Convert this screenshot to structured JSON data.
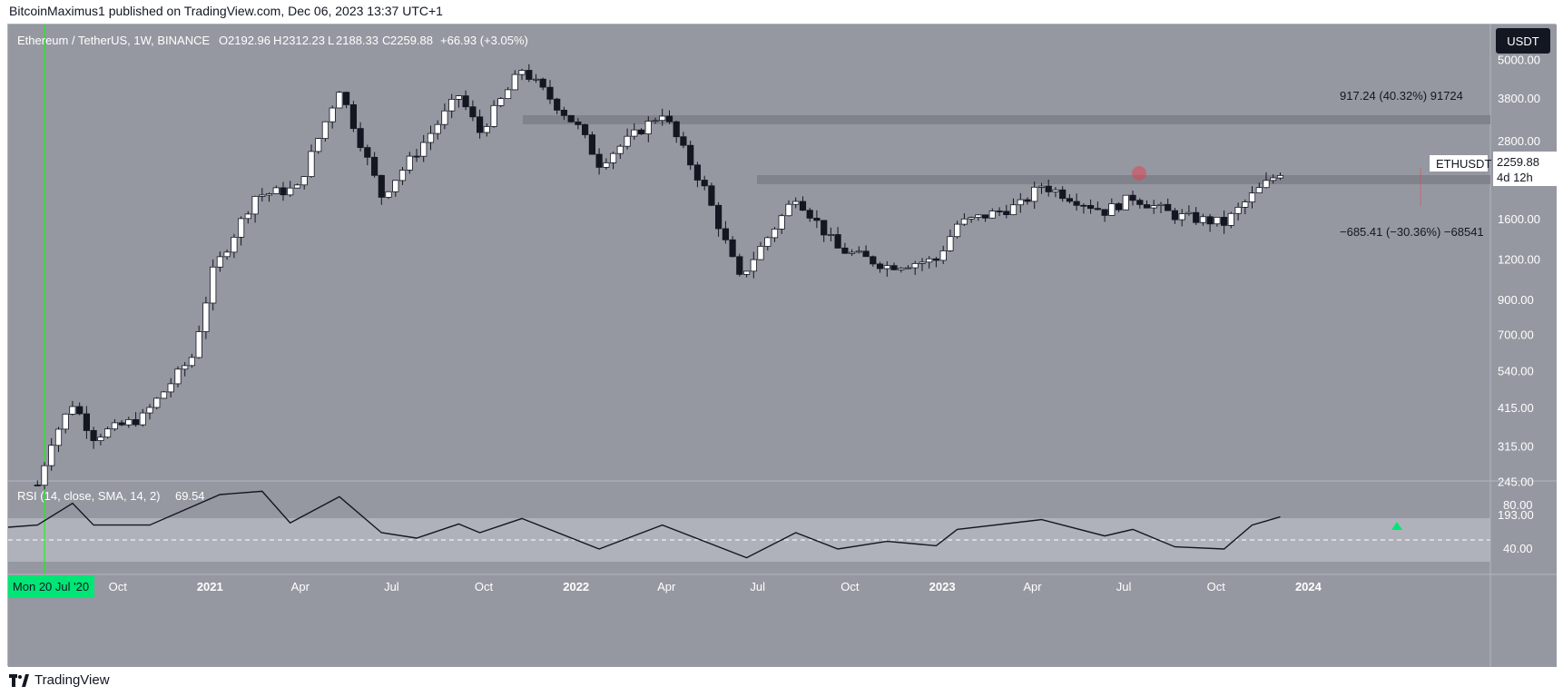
{
  "header": {
    "published": "BitcoinMaximus1 published on TradingView.com, Dec 06, 2023 13:37 UTC+1"
  },
  "footer": {
    "brand": "TradingView"
  },
  "legend": {
    "symbol": "Ethereum / TetherUS, 1W, BINANCE",
    "o_label": "O",
    "o": "2192.96",
    "h_label": "H",
    "h": "2312.23",
    "l_label": "L",
    "l": "2188.33",
    "c_label": "C",
    "c": "2259.88",
    "change": "+66.93 (+3.05%)"
  },
  "currency_button": "USDT",
  "price_tag": {
    "symbol": "ETHUSDT",
    "price": "2259.88",
    "countdown": "4d 12h"
  },
  "measure": {
    "up_label": "917.24 (40.32%) 91724",
    "down_label": "−685.41 (−30.36%) −68541"
  },
  "rsi": {
    "label": "RSI (14, close, SMA, 14, 2)",
    "value": "69.54"
  },
  "x_highlight": "Mon 20 Jul '20",
  "colors": {
    "background": "#9598a1",
    "candle_up": "#ffffff",
    "candle_down": "#131722",
    "rsi_band": "#b2b5be",
    "zone": "#80838c",
    "signal_green": "#00e676",
    "crosshair_green": "#00ff00",
    "highlight_red": "#f23645"
  },
  "chart_data": [
    {
      "type": "candlestick",
      "title": "Ethereum / TetherUS, 1W, BINANCE",
      "scale": "log",
      "yticks": [
        "5000.00",
        "3800.00",
        "2800.00",
        "2259.88",
        "1600.00",
        "1200.00",
        "900.00",
        "700.00",
        "540.00",
        "415.00",
        "315.00",
        "245.00",
        "193.00"
      ],
      "xticks": [
        "Oct",
        "2021",
        "Apr",
        "Jul",
        "Oct",
        "2022",
        "Apr",
        "Jul",
        "Oct",
        "2023",
        "Apr",
        "Jul",
        "Oct",
        "2024"
      ],
      "zones": [
        {
          "label": "resistance",
          "price": 3200
        },
        {
          "label": "support",
          "price": 1900
        }
      ],
      "close_points": [
        {
          "date": "2020-07-13",
          "close": 240
        },
        {
          "date": "2020-07-27",
          "close": 330
        },
        {
          "date": "2020-08-17",
          "close": 430
        },
        {
          "date": "2020-09-07",
          "close": 340
        },
        {
          "date": "2020-10-26",
          "close": 390
        },
        {
          "date": "2020-12-14",
          "close": 600
        },
        {
          "date": "2021-01-04",
          "close": 1100
        },
        {
          "date": "2021-02-15",
          "close": 1900
        },
        {
          "date": "2021-03-29",
          "close": 2000
        },
        {
          "date": "2021-05-10",
          "close": 4100
        },
        {
          "date": "2021-06-21",
          "close": 1900
        },
        {
          "date": "2021-07-26",
          "close": 2600
        },
        {
          "date": "2021-09-06",
          "close": 3900
        },
        {
          "date": "2021-09-27",
          "close": 3000
        },
        {
          "date": "2021-11-08",
          "close": 4700
        },
        {
          "date": "2022-01-03",
          "close": 3100
        },
        {
          "date": "2022-01-24",
          "close": 2400
        },
        {
          "date": "2022-03-28",
          "close": 3450
        },
        {
          "date": "2022-05-09",
          "close": 2000
        },
        {
          "date": "2022-06-13",
          "close": 1050
        },
        {
          "date": "2022-08-08",
          "close": 1900
        },
        {
          "date": "2022-09-19",
          "close": 1300
        },
        {
          "date": "2022-11-07",
          "close": 1150
        },
        {
          "date": "2022-12-26",
          "close": 1200
        },
        {
          "date": "2023-01-16",
          "close": 1550
        },
        {
          "date": "2023-03-20",
          "close": 1780
        },
        {
          "date": "2023-04-10",
          "close": 2050
        },
        {
          "date": "2023-06-12",
          "close": 1700
        },
        {
          "date": "2023-07-10",
          "close": 1880
        },
        {
          "date": "2023-08-21",
          "close": 1650
        },
        {
          "date": "2023-10-09",
          "close": 1560
        },
        {
          "date": "2023-11-06",
          "close": 1900
        },
        {
          "date": "2023-12-04",
          "close": 2259.88
        }
      ]
    },
    {
      "type": "line",
      "title": "RSI (14, close, SMA, 14, 2)",
      "ylim": [
        20,
        100
      ],
      "yticks": [
        "80.00",
        "40.00"
      ],
      "band": [
        30,
        70
      ],
      "midline": 50,
      "points": [
        {
          "date": "2020-07-13",
          "value": 62
        },
        {
          "date": "2020-08-17",
          "value": 82
        },
        {
          "date": "2020-09-07",
          "value": 62
        },
        {
          "date": "2020-11-02",
          "value": 62
        },
        {
          "date": "2021-01-11",
          "value": 90
        },
        {
          "date": "2021-02-22",
          "value": 93
        },
        {
          "date": "2021-03-22",
          "value": 64
        },
        {
          "date": "2021-05-10",
          "value": 88
        },
        {
          "date": "2021-06-21",
          "value": 55
        },
        {
          "date": "2021-07-26",
          "value": 50
        },
        {
          "date": "2021-09-06",
          "value": 63
        },
        {
          "date": "2021-09-27",
          "value": 55
        },
        {
          "date": "2021-11-08",
          "value": 68
        },
        {
          "date": "2022-01-24",
          "value": 40
        },
        {
          "date": "2022-03-28",
          "value": 62
        },
        {
          "date": "2022-06-20",
          "value": 32
        },
        {
          "date": "2022-08-08",
          "value": 55
        },
        {
          "date": "2022-09-19",
          "value": 40
        },
        {
          "date": "2022-11-07",
          "value": 47
        },
        {
          "date": "2022-12-26",
          "value": 43
        },
        {
          "date": "2023-01-16",
          "value": 58
        },
        {
          "date": "2023-04-10",
          "value": 67
        },
        {
          "date": "2023-06-12",
          "value": 52
        },
        {
          "date": "2023-07-10",
          "value": 58
        },
        {
          "date": "2023-08-21",
          "value": 42
        },
        {
          "date": "2023-10-09",
          "value": 40
        },
        {
          "date": "2023-11-06",
          "value": 62
        },
        {
          "date": "2023-12-04",
          "value": 69.54
        }
      ]
    }
  ]
}
